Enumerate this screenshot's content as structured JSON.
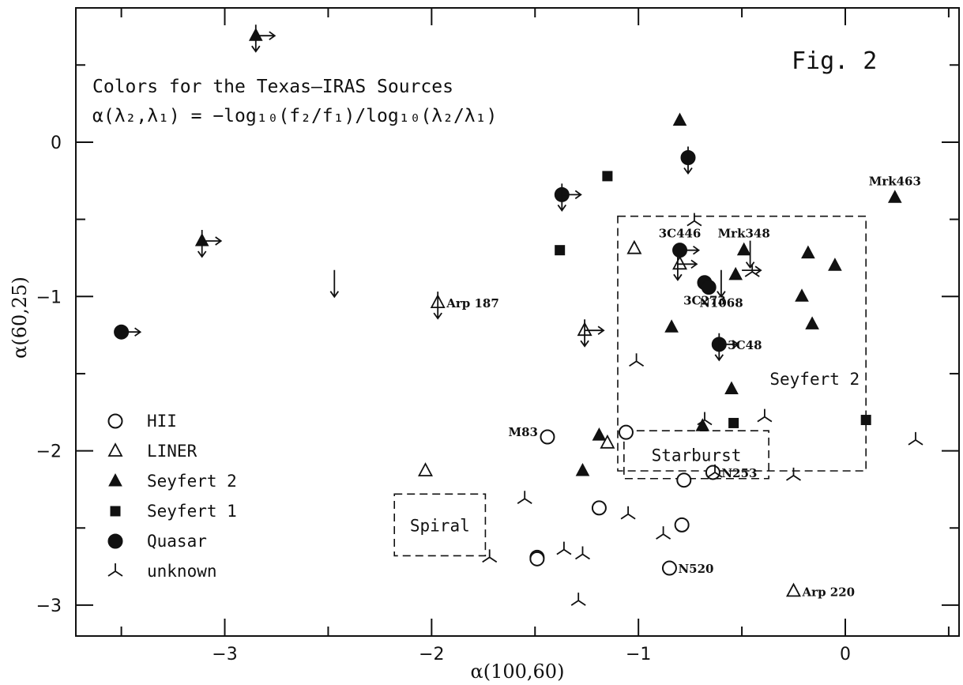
{
  "figure_label": "Fig. 2",
  "chart_data": {
    "type": "scatter",
    "title": "Colors for the Texas–IRAS Sources",
    "subtitle": "α(λ₂,λ₁) = −log₁₀(f₂/f₁)/log₁₀(λ₂/λ₁)",
    "xlabel": "α(100,60)",
    "ylabel": "α(60,25)",
    "xlim": [
      -3.72,
      0.55
    ],
    "ylim": [
      -3.2,
      0.87
    ],
    "xticks": [
      {
        "value": -3,
        "label": "−3"
      },
      {
        "value": -2,
        "label": "−2"
      },
      {
        "value": -1,
        "label": "−1"
      },
      {
        "value": 0,
        "label": "0"
      }
    ],
    "yticks": [
      {
        "value": 0,
        "label": "0"
      },
      {
        "value": -1,
        "label": "−1"
      },
      {
        "value": -2,
        "label": "−2"
      },
      {
        "value": -3,
        "label": "−3"
      }
    ],
    "minor_step": 0.5,
    "grid": false,
    "legend_position": "bottom-left",
    "series": [
      {
        "name": "HII",
        "marker": "open-circle",
        "points": [
          {
            "x": -1.44,
            "y": -1.91
          },
          {
            "x": -1.06,
            "y": -1.88
          },
          {
            "x": -0.64,
            "y": -2.14
          },
          {
            "x": -0.78,
            "y": -2.19
          },
          {
            "x": -1.19,
            "y": -2.37
          },
          {
            "x": -0.79,
            "y": -2.48
          },
          {
            "x": -1.49,
            "y": -2.69
          },
          {
            "x": -1.49,
            "y": -2.7
          },
          {
            "x": -0.85,
            "y": -2.76
          }
        ]
      },
      {
        "name": "LINER",
        "marker": "open-triangle",
        "points": [
          {
            "x": -1.02,
            "y": -0.69
          },
          {
            "x": -0.8,
            "y": -0.79
          },
          {
            "x": -1.97,
            "y": -1.04
          },
          {
            "x": -1.26,
            "y": -1.22
          },
          {
            "x": -1.15,
            "y": -1.95
          },
          {
            "x": -2.03,
            "y": -2.13
          },
          {
            "x": -0.25,
            "y": -2.91
          }
        ]
      },
      {
        "name": "Seyfert 2",
        "marker": "filled-triangle",
        "points": [
          {
            "x": -2.85,
            "y": 0.69
          },
          {
            "x": -0.8,
            "y": 0.14
          },
          {
            "x": 0.24,
            "y": -0.36
          },
          {
            "x": -3.11,
            "y": -0.64
          },
          {
            "x": -0.49,
            "y": -0.7
          },
          {
            "x": -0.18,
            "y": -0.72
          },
          {
            "x": -0.05,
            "y": -0.8
          },
          {
            "x": -0.53,
            "y": -0.86
          },
          {
            "x": -0.21,
            "y": -1.0
          },
          {
            "x": -0.84,
            "y": -1.2
          },
          {
            "x": -0.16,
            "y": -1.18
          },
          {
            "x": -0.55,
            "y": -1.6
          },
          {
            "x": -0.69,
            "y": -1.84
          },
          {
            "x": -1.19,
            "y": -1.9
          },
          {
            "x": -1.27,
            "y": -2.13
          }
        ]
      },
      {
        "name": "Seyfert 1",
        "marker": "filled-square",
        "points": [
          {
            "x": -1.15,
            "y": -0.22
          },
          {
            "x": -1.38,
            "y": -0.7
          },
          {
            "x": -0.54,
            "y": -1.82
          },
          {
            "x": 0.1,
            "y": -1.8
          }
        ]
      },
      {
        "name": "Quasar",
        "marker": "filled-circle",
        "points": [
          {
            "x": -0.76,
            "y": -0.1
          },
          {
            "x": -1.37,
            "y": -0.34
          },
          {
            "x": -0.8,
            "y": -0.7
          },
          {
            "x": -0.68,
            "y": -0.91
          },
          {
            "x": -0.66,
            "y": -0.94
          },
          {
            "x": -0.61,
            "y": -1.31
          },
          {
            "x": -3.5,
            "y": -1.23
          }
        ]
      },
      {
        "name": "unknown",
        "marker": "tripod",
        "points": [
          {
            "x": -0.73,
            "y": -0.51
          },
          {
            "x": -0.45,
            "y": -0.84
          },
          {
            "x": -1.01,
            "y": -1.42
          },
          {
            "x": -0.68,
            "y": -1.8
          },
          {
            "x": -0.39,
            "y": -1.78
          },
          {
            "x": 0.34,
            "y": -1.93
          },
          {
            "x": -0.63,
            "y": -2.14
          },
          {
            "x": -0.25,
            "y": -2.16
          },
          {
            "x": -1.55,
            "y": -2.31
          },
          {
            "x": -1.05,
            "y": -2.41
          },
          {
            "x": -0.88,
            "y": -2.54
          },
          {
            "x": -1.36,
            "y": -2.64
          },
          {
            "x": -1.27,
            "y": -2.67
          },
          {
            "x": -1.72,
            "y": -2.69
          },
          {
            "x": -1.29,
            "y": -2.97
          }
        ]
      }
    ],
    "upper_limits_y": [
      {
        "x": -2.85,
        "y": 0.69
      },
      {
        "x": -3.11,
        "y": -0.64
      },
      {
        "x": -2.47,
        "y": -0.9
      },
      {
        "x": -1.97,
        "y": -1.04
      },
      {
        "x": -1.26,
        "y": -1.22
      },
      {
        "x": -1.37,
        "y": -0.34
      },
      {
        "x": -0.76,
        "y": -0.1
      },
      {
        "x": -0.81,
        "y": -0.79
      },
      {
        "x": -0.6,
        "y": -0.9
      },
      {
        "x": -0.46,
        "y": -0.71
      },
      {
        "x": -0.61,
        "y": -1.31
      }
    ],
    "lower_limits_x": [
      {
        "x": -2.85,
        "y": 0.69
      },
      {
        "x": -3.11,
        "y": -0.64
      },
      {
        "x": -3.5,
        "y": -1.23
      },
      {
        "x": -1.37,
        "y": -0.34
      },
      {
        "x": -1.26,
        "y": -1.22
      },
      {
        "x": -0.8,
        "y": -0.7
      },
      {
        "x": -0.81,
        "y": -0.79
      },
      {
        "x": -0.61,
        "y": -1.31
      },
      {
        "x": -0.5,
        "y": -0.83
      }
    ],
    "annotations": [
      {
        "text": "Mrk463",
        "x": 0.24,
        "y": -0.36,
        "anchor": "above"
      },
      {
        "text": "3C446",
        "x": -0.8,
        "y": -0.7,
        "anchor": "above"
      },
      {
        "text": "Mrk348",
        "x": -0.49,
        "y": -0.7,
        "anchor": "above"
      },
      {
        "text": "3C273",
        "x": -0.68,
        "y": -0.91,
        "anchor": "below"
      },
      {
        "text": "N1068",
        "x": -0.66,
        "y": -0.94,
        "anchor": "below-right"
      },
      {
        "text": "3C48",
        "x": -0.61,
        "y": -1.31,
        "anchor": "right"
      },
      {
        "text": "Arp 187",
        "x": -1.97,
        "y": -1.04,
        "anchor": "right"
      },
      {
        "text": "M83",
        "x": -1.44,
        "y": -1.91,
        "anchor": "left"
      },
      {
        "text": "N253",
        "x": -0.64,
        "y": -2.14,
        "anchor": "right"
      },
      {
        "text": "N520",
        "x": -0.85,
        "y": -2.76,
        "anchor": "right"
      },
      {
        "text": "Arp 220",
        "x": -0.25,
        "y": -2.91,
        "anchor": "right"
      }
    ],
    "regions": [
      {
        "label": "Seyfert 2",
        "x0": -1.1,
        "x1": 0.1,
        "y0": -2.13,
        "y1": -0.48
      },
      {
        "label": "Starburst",
        "x0": -1.07,
        "x1": -0.37,
        "y0": -2.18,
        "y1": -1.87
      },
      {
        "label": "Spiral",
        "x0": -2.18,
        "x1": -1.74,
        "y0": -2.68,
        "y1": -2.28
      }
    ],
    "legend": [
      {
        "marker": "open-circle",
        "label": "HII"
      },
      {
        "marker": "open-triangle",
        "label": "LINER"
      },
      {
        "marker": "filled-triangle",
        "label": "Seyfert 2"
      },
      {
        "marker": "filled-square",
        "label": "Seyfert 1"
      },
      {
        "marker": "filled-circle",
        "label": "Quasar"
      },
      {
        "marker": "tripod",
        "label": "unknown"
      }
    ]
  }
}
